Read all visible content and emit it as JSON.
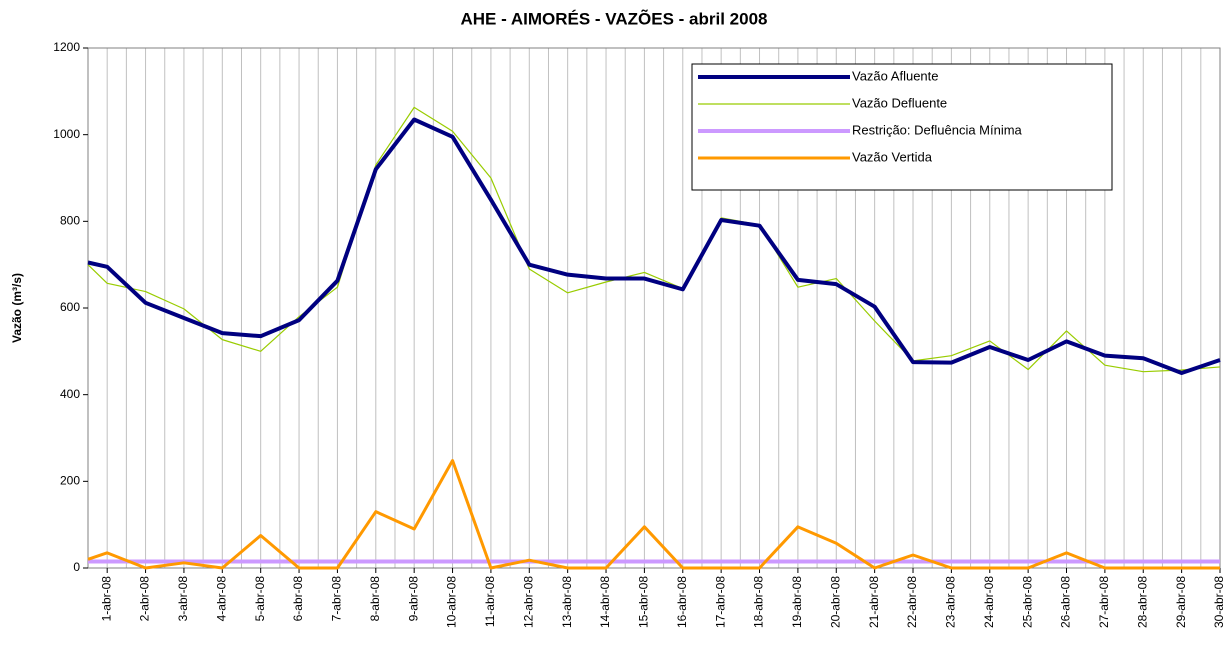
{
  "chart_data": {
    "type": "line",
    "title": "AHE - AIMORÉS - VAZÕES - abril 2008",
    "y_label": "Vazão (m³/s)",
    "categories": [
      null,
      "1-abr-08",
      "2-abr-08",
      "3-abr-08",
      "4-abr-08",
      "5-abr-08",
      "6-abr-08",
      "7-abr-08",
      "8-abr-08",
      "9-abr-08",
      "10-abr-08",
      "11-abr-08",
      "12-abr-08",
      "13-abr-08",
      "14-abr-08",
      "15-abr-08",
      "16-abr-08",
      "17-abr-08",
      "18-abr-08",
      "19-abr-08",
      "20-abr-08",
      "21-abr-08",
      "22-abr-08",
      "23-abr-08",
      "24-abr-08",
      "25-abr-08",
      "26-abr-08",
      "27-abr-08",
      "28-abr-08",
      "29-abr-08",
      "30-abr-08"
    ],
    "series": [
      {
        "name": "Vazão Afluente",
        "color": "#000080",
        "width": 4,
        "values": [
          705,
          695,
          612,
          577,
          542,
          535,
          572,
          663,
          920,
          1035,
          995,
          850,
          700,
          677,
          668,
          668,
          643,
          803,
          790,
          665,
          655,
          603,
          475,
          474,
          510,
          480,
          523,
          490,
          484,
          450,
          480
        ]
      },
      {
        "name": "Vazão Defluente",
        "color": "#99cc00",
        "width": 1.2,
        "values": [
          700,
          657,
          638,
          598,
          527,
          500,
          580,
          648,
          930,
          1063,
          1008,
          900,
          690,
          635,
          660,
          682,
          645,
          808,
          792,
          648,
          668,
          570,
          478,
          490,
          524,
          458,
          547,
          468,
          453,
          457,
          464
        ]
      },
      {
        "name": "Restrição: Defluência Mínima",
        "color": "#cc99ff",
        "width": 4,
        "values": [
          15,
          15,
          15,
          15,
          15,
          15,
          15,
          15,
          15,
          15,
          15,
          15,
          15,
          15,
          15,
          15,
          15,
          15,
          15,
          15,
          15,
          15,
          15,
          15,
          15,
          15,
          15,
          15,
          15,
          15,
          15
        ]
      },
      {
        "name": "Vazão Vertida",
        "color": "#ff9900",
        "width": 3,
        "values": [
          20,
          35,
          0,
          12,
          0,
          75,
          0,
          0,
          130,
          90,
          248,
          0,
          18,
          0,
          0,
          95,
          0,
          0,
          0,
          95,
          57,
          0,
          30,
          0,
          0,
          0,
          35,
          0,
          0,
          0,
          0
        ]
      }
    ],
    "ylim": [
      0,
      1200
    ],
    "yticks": [
      0,
      200,
      400,
      600,
      800,
      1000,
      1200
    ],
    "grid": "x",
    "legend": "top-right"
  }
}
